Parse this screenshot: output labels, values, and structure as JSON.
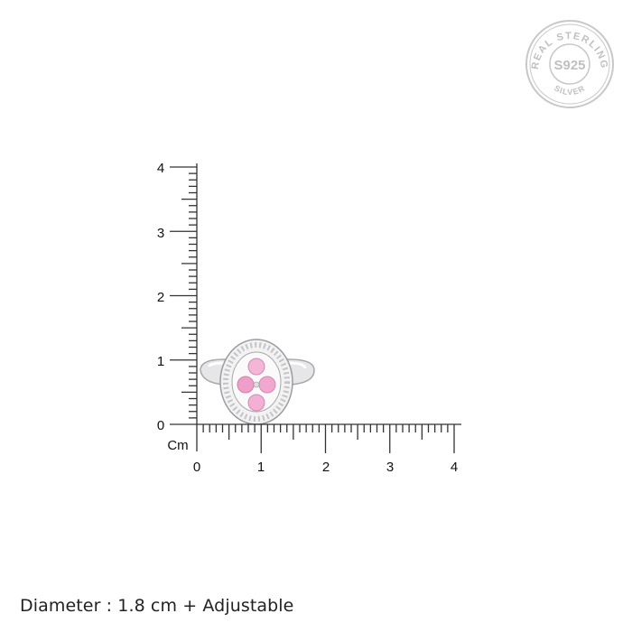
{
  "stamp": {
    "top_text": "REAL STERLING",
    "center_text": "S925",
    "bottom_text": "SILVER",
    "color": "#c4c4c4"
  },
  "ruler": {
    "unit": "Cm",
    "y_labels": [
      "0",
      "1",
      "2",
      "3",
      "4"
    ],
    "x_labels": [
      "0",
      "1",
      "2",
      "3",
      "4"
    ],
    "range_cm": [
      0,
      4
    ],
    "minor_step_cm": 0.1,
    "color": "#333333"
  },
  "product": {
    "type": "ring",
    "stone_color": "#f0a8cf",
    "metal_color": "#d8d8da"
  },
  "caption": "Diameter : 1.8 cm + Adjustable"
}
